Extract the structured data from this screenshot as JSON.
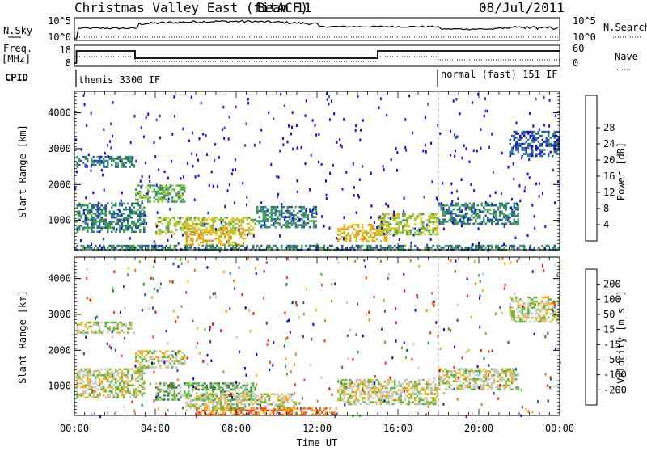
{
  "header": {
    "title": "Christmas Valley East (fitACF)",
    "beam": "Beam 11",
    "date": "08/Jul/2011"
  },
  "param_panels": {
    "nsky_label": "N.Sky",
    "nsky_ticks": [
      "10^5",
      "10^0"
    ],
    "nsearch_label": "N.Search",
    "nsearch_ticks": [
      "10^5",
      "10^0"
    ],
    "freq_label": "Freq.",
    "freq_unit": "[MHz]",
    "freq_ticks": [
      "18",
      "8"
    ],
    "nave_label": "Nave",
    "nave_ticks": [
      "60",
      "0"
    ],
    "cpid_label": "CPID",
    "cpid_segments": [
      {
        "label": "themis 3300 IF",
        "start_hour": 0,
        "end_hour": 18
      },
      {
        "label": "normal (fast) 151 IF",
        "start_hour": 18,
        "end_hour": 24
      }
    ]
  },
  "x_axis": {
    "label": "Time UT",
    "ticks": [
      "00:00",
      "04:00",
      "08:00",
      "12:00",
      "16:00",
      "20:00",
      "00:00"
    ],
    "range_hours": [
      0,
      24
    ]
  },
  "chart_data": [
    {
      "type": "heatmap",
      "panel": "power",
      "ylabel": "Slant Range [km]",
      "yticks": [
        1000,
        2000,
        3000,
        4000
      ],
      "ylim": [
        180,
        4600
      ],
      "colorbar": {
        "label": "Power [dB]",
        "ticks": [
          "4",
          "8",
          "12",
          "16",
          "20",
          "24",
          "28"
        ],
        "colors": [
          "#1010e0",
          "#2a50b0",
          "#2f8b6a",
          "#4ea84a",
          "#a8c834",
          "#f0c020",
          "#f09020",
          "#f05018",
          "#e01010"
        ]
      },
      "echo_bands": [
        {
          "start_hour": 0.1,
          "end_hour": 3.0,
          "range_start_km": 2500,
          "range_end_km": 2800,
          "level": 2
        },
        {
          "start_hour": 0.1,
          "end_hour": 3.5,
          "range_start_km": 700,
          "range_end_km": 1500,
          "level": 2
        },
        {
          "start_hour": 3.0,
          "end_hour": 5.5,
          "range_start_km": 1500,
          "range_end_km": 2000,
          "level": 3
        },
        {
          "start_hour": 4.0,
          "end_hour": 9.0,
          "range_start_km": 600,
          "range_end_km": 1100,
          "level": 4
        },
        {
          "start_hour": 5.5,
          "end_hour": 8.5,
          "range_start_km": 300,
          "range_end_km": 800,
          "level": 5
        },
        {
          "start_hour": 9.0,
          "end_hour": 12.0,
          "range_start_km": 800,
          "range_end_km": 1400,
          "level": 2
        },
        {
          "start_hour": 13.0,
          "end_hour": 15.5,
          "range_start_km": 400,
          "range_end_km": 900,
          "level": 5
        },
        {
          "start_hour": 15.0,
          "end_hour": 18.0,
          "range_start_km": 600,
          "range_end_km": 1200,
          "level": 4
        },
        {
          "start_hour": 18.0,
          "end_hour": 22.0,
          "range_start_km": 900,
          "range_end_km": 1500,
          "level": 2
        },
        {
          "start_hour": 21.5,
          "end_hour": 24.0,
          "range_start_km": 2800,
          "range_end_km": 3500,
          "level": 1
        },
        {
          "start_hour": 0.0,
          "end_hour": 24.0,
          "range_start_km": 200,
          "range_end_km": 320,
          "level": 2
        }
      ]
    },
    {
      "type": "heatmap",
      "panel": "velocity",
      "ylabel": "Slant Range [km]",
      "yticks": [
        1000,
        2000,
        3000,
        4000
      ],
      "ylim": [
        180,
        4600
      ],
      "colorbar": {
        "label": "Velocity [m s⁻¹]",
        "ticks": [
          "200",
          "100",
          "50",
          "15",
          "-15",
          "-50",
          "-100",
          "-200"
        ],
        "colors": [
          "#1010c0",
          "#205aa0",
          "#2f7e40",
          "#5ab83a",
          "#c8c8c4",
          "#f0b020",
          "#f08018",
          "#f04018",
          "#e01010"
        ]
      },
      "echo_bands": [
        {
          "start_hour": 0.1,
          "end_hour": 3.0,
          "range_start_km": 2500,
          "range_end_km": 2800,
          "level": 4
        },
        {
          "start_hour": 0.1,
          "end_hour": 3.5,
          "range_start_km": 700,
          "range_end_km": 1500,
          "level": 4
        },
        {
          "start_hour": 3.0,
          "end_hour": 5.5,
          "range_start_km": 1500,
          "range_end_km": 2000,
          "level": 4
        },
        {
          "start_hour": 4.0,
          "end_hour": 9.0,
          "range_start_km": 600,
          "range_end_km": 1100,
          "level": 3
        },
        {
          "start_hour": 5.5,
          "end_hour": 11.0,
          "range_start_km": 300,
          "range_end_km": 800,
          "level": 4
        },
        {
          "start_hour": 13.0,
          "end_hour": 18.0,
          "range_start_km": 500,
          "range_end_km": 1200,
          "level": 4
        },
        {
          "start_hour": 18.0,
          "end_hour": 22.0,
          "range_start_km": 900,
          "range_end_km": 1500,
          "level": 4
        },
        {
          "start_hour": 21.5,
          "end_hour": 24.0,
          "range_start_km": 2800,
          "range_end_km": 3500,
          "level": 4
        },
        {
          "start_hour": 6.0,
          "end_hour": 13.0,
          "range_start_km": 200,
          "range_end_km": 400,
          "level": 6
        }
      ]
    }
  ]
}
